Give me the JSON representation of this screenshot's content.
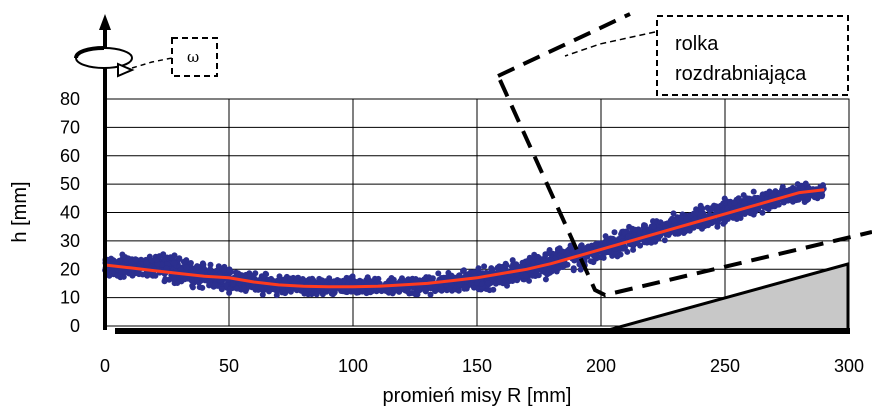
{
  "chart_data": {
    "type": "scatter",
    "title": "",
    "xlabel": "promień misy R [mm]",
    "ylabel": "h [mm]",
    "xlim": [
      0,
      300
    ],
    "ylim": [
      0,
      80
    ],
    "xticks": [
      0,
      50,
      100,
      150,
      200,
      250,
      300
    ],
    "yticks": [
      0,
      10,
      20,
      30,
      40,
      50,
      60,
      70,
      80
    ],
    "grid": true,
    "series": [
      {
        "type": "scatter",
        "color": "#2b2f8f",
        "x_range": [
          0,
          290
        ],
        "band": [
          {
            "x": 0,
            "lo": 16,
            "hi": 26
          },
          {
            "x": 25,
            "lo": 14,
            "hi": 27
          },
          {
            "x": 50,
            "lo": 10,
            "hi": 22
          },
          {
            "x": 75,
            "lo": 10,
            "hi": 18
          },
          {
            "x": 100,
            "lo": 10,
            "hi": 18
          },
          {
            "x": 125,
            "lo": 10,
            "hi": 18
          },
          {
            "x": 150,
            "lo": 11,
            "hi": 21
          },
          {
            "x": 175,
            "lo": 15,
            "hi": 27
          },
          {
            "x": 200,
            "lo": 21,
            "hi": 33
          },
          {
            "x": 225,
            "lo": 29,
            "hi": 40
          },
          {
            "x": 250,
            "lo": 35,
            "hi": 46
          },
          {
            "x": 275,
            "lo": 41,
            "hi": 51
          },
          {
            "x": 290,
            "lo": 44,
            "hi": 51
          }
        ]
      },
      {
        "type": "line",
        "color": "#ff3b1f",
        "x": [
          0,
          10,
          20,
          30,
          40,
          50,
          60,
          70,
          80,
          90,
          100,
          110,
          120,
          130,
          140,
          150,
          160,
          170,
          180,
          190,
          200,
          210,
          220,
          230,
          240,
          250,
          260,
          270,
          280,
          290
        ],
        "y": [
          21.5,
          20.5,
          19.5,
          18.5,
          17.5,
          17,
          15.5,
          14.5,
          14,
          13.8,
          13.8,
          14,
          14.5,
          15,
          16,
          17,
          18.5,
          20,
          22,
          24.5,
          27,
          29.5,
          32,
          34.5,
          37,
          39.5,
          42,
          44.5,
          47,
          48
        ]
      }
    ],
    "annotations": {
      "omega": "ω",
      "roller_line1": "rolka",
      "roller_line2": "rozdrabniająca"
    }
  }
}
